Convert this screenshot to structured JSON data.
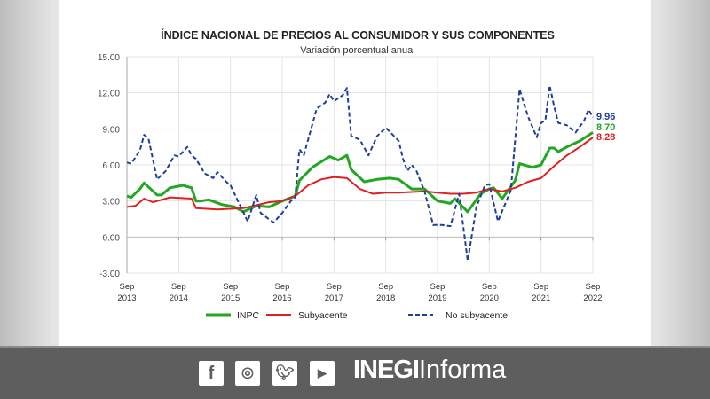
{
  "chart_data": {
    "type": "line",
    "title": "ÍNDICE NACIONAL DE PRECIOS AL CONSUMIDOR Y SUS COMPONENTES",
    "subtitle": "Variación porcentual anual",
    "ylim": [
      -3,
      15
    ],
    "yticks": [
      "15.00",
      "12.00",
      "9.00",
      "6.00",
      "3.00",
      "0.00",
      "-3.00"
    ],
    "xticks": [
      [
        "Sep",
        "2013"
      ],
      [
        "Sep",
        "2014"
      ],
      [
        "Sep",
        "2015"
      ],
      [
        "Sep",
        "2016"
      ],
      [
        "Sep",
        "2017"
      ],
      [
        "Sep",
        "2018"
      ],
      [
        "Sep",
        "2019"
      ],
      [
        "Sep",
        "2020"
      ],
      [
        "Sep",
        "2021"
      ],
      [
        "Sep",
        "2022"
      ]
    ],
    "grid": true,
    "legend": "bottom",
    "series": [
      {
        "name": "INPC",
        "color": "#22a722",
        "style": "solid",
        "end_label": "8.70",
        "points": [
          [
            "2013-09",
            3.4
          ],
          [
            "2013-10",
            3.3
          ],
          [
            "2013-12",
            4.0
          ],
          [
            "2014-01",
            4.5
          ],
          [
            "2014-04",
            3.5
          ],
          [
            "2014-05",
            3.5
          ],
          [
            "2014-07",
            4.1
          ],
          [
            "2014-10",
            4.3
          ],
          [
            "2014-12",
            4.1
          ],
          [
            "2015-01",
            3.0
          ],
          [
            "2015-02",
            3.0
          ],
          [
            "2015-04",
            3.1
          ],
          [
            "2015-07",
            2.7
          ],
          [
            "2015-10",
            2.5
          ],
          [
            "2015-12",
            2.1
          ],
          [
            "2016-03",
            2.6
          ],
          [
            "2016-06",
            2.5
          ],
          [
            "2016-09",
            3.0
          ],
          [
            "2016-12",
            3.4
          ],
          [
            "2017-01",
            4.7
          ],
          [
            "2017-04",
            5.8
          ],
          [
            "2017-08",
            6.7
          ],
          [
            "2017-10",
            6.4
          ],
          [
            "2017-12",
            6.8
          ],
          [
            "2018-01",
            5.6
          ],
          [
            "2018-04",
            4.6
          ],
          [
            "2018-07",
            4.8
          ],
          [
            "2018-10",
            4.9
          ],
          [
            "2018-12",
            4.8
          ],
          [
            "2019-03",
            4.0
          ],
          [
            "2019-06",
            4.0
          ],
          [
            "2019-09",
            3.0
          ],
          [
            "2019-12",
            2.8
          ],
          [
            "2020-01",
            3.2
          ],
          [
            "2020-04",
            2.1
          ],
          [
            "2020-07",
            3.6
          ],
          [
            "2020-09",
            4.0
          ],
          [
            "2020-10",
            4.1
          ],
          [
            "2020-12",
            3.2
          ],
          [
            "2021-03",
            4.7
          ],
          [
            "2021-04",
            6.1
          ],
          [
            "2021-07",
            5.8
          ],
          [
            "2021-09",
            6.0
          ],
          [
            "2021-11",
            7.4
          ],
          [
            "2021-12",
            7.4
          ],
          [
            "2022-01",
            7.1
          ],
          [
            "2022-03",
            7.5
          ],
          [
            "2022-06",
            8.0
          ],
          [
            "2022-09",
            8.7
          ]
        ]
      },
      {
        "name": "Subyacente",
        "color": "#e02020",
        "style": "solid",
        "end_label": "8.28",
        "points": [
          [
            "2013-09",
            2.5
          ],
          [
            "2013-11",
            2.6
          ],
          [
            "2014-01",
            3.2
          ],
          [
            "2014-03",
            2.9
          ],
          [
            "2014-05",
            3.1
          ],
          [
            "2014-07",
            3.3
          ],
          [
            "2014-12",
            3.2
          ],
          [
            "2015-01",
            2.4
          ],
          [
            "2015-06",
            2.3
          ],
          [
            "2015-12",
            2.4
          ],
          [
            "2016-06",
            2.9
          ],
          [
            "2016-09",
            3.0
          ],
          [
            "2016-12",
            3.4
          ],
          [
            "2017-03",
            4.3
          ],
          [
            "2017-06",
            4.8
          ],
          [
            "2017-09",
            5.0
          ],
          [
            "2017-12",
            4.9
          ],
          [
            "2018-03",
            4.0
          ],
          [
            "2018-06",
            3.6
          ],
          [
            "2018-09",
            3.7
          ],
          [
            "2018-12",
            3.7
          ],
          [
            "2019-06",
            3.8
          ],
          [
            "2019-09",
            3.7
          ],
          [
            "2019-12",
            3.6
          ],
          [
            "2020-03",
            3.6
          ],
          [
            "2020-06",
            3.7
          ],
          [
            "2020-09",
            4.0
          ],
          [
            "2020-12",
            3.8
          ],
          [
            "2021-03",
            4.1
          ],
          [
            "2021-06",
            4.6
          ],
          [
            "2021-09",
            4.9
          ],
          [
            "2021-12",
            5.9
          ],
          [
            "2022-03",
            6.8
          ],
          [
            "2022-06",
            7.5
          ],
          [
            "2022-09",
            8.28
          ]
        ]
      },
      {
        "name": "No subyacente",
        "color": "#1f3f99",
        "style": "dashed",
        "end_label": "9.96",
        "points": [
          [
            "2013-09",
            6.2
          ],
          [
            "2013-10",
            6.1
          ],
          [
            "2013-12",
            7.2
          ],
          [
            "2014-01",
            8.5
          ],
          [
            "2014-02",
            8.2
          ],
          [
            "2014-04",
            4.8
          ],
          [
            "2014-06",
            5.5
          ],
          [
            "2014-08",
            6.8
          ],
          [
            "2014-09",
            6.7
          ],
          [
            "2014-11",
            7.5
          ],
          [
            "2014-12",
            6.8
          ],
          [
            "2015-01",
            6.5
          ],
          [
            "2015-03",
            5.3
          ],
          [
            "2015-05",
            4.9
          ],
          [
            "2015-06",
            5.4
          ],
          [
            "2015-08",
            4.6
          ],
          [
            "2015-09",
            4.3
          ],
          [
            "2015-11",
            2.8
          ],
          [
            "2016-01",
            1.3
          ],
          [
            "2016-03",
            3.5
          ],
          [
            "2016-04",
            2.0
          ],
          [
            "2016-07",
            1.2
          ],
          [
            "2016-09",
            2.0
          ],
          [
            "2016-11",
            3.0
          ],
          [
            "2016-12",
            3.3
          ],
          [
            "2017-01",
            7.3
          ],
          [
            "2017-02",
            6.8
          ],
          [
            "2017-05",
            10.7
          ],
          [
            "2017-07",
            11.2
          ],
          [
            "2017-08",
            11.9
          ],
          [
            "2017-09",
            11.3
          ],
          [
            "2017-11",
            11.8
          ],
          [
            "2017-12",
            12.4
          ],
          [
            "2018-01",
            8.4
          ],
          [
            "2018-03",
            8.1
          ],
          [
            "2018-05",
            6.8
          ],
          [
            "2018-07",
            8.4
          ],
          [
            "2018-09",
            9.1
          ],
          [
            "2018-12",
            8.0
          ],
          [
            "2019-01",
            6.5
          ],
          [
            "2019-02",
            5.5
          ],
          [
            "2019-03",
            6.0
          ],
          [
            "2019-04",
            5.6
          ],
          [
            "2019-06",
            3.8
          ],
          [
            "2019-08",
            1.0
          ],
          [
            "2019-10",
            1.0
          ],
          [
            "2019-12",
            0.9
          ],
          [
            "2020-02",
            3.6
          ],
          [
            "2020-04",
            -2.0
          ],
          [
            "2020-06",
            2.5
          ],
          [
            "2020-08",
            4.3
          ],
          [
            "2020-09",
            4.4
          ],
          [
            "2020-11",
            1.3
          ],
          [
            "2021-02",
            3.9
          ],
          [
            "2021-04",
            12.3
          ],
          [
            "2021-06",
            10.0
          ],
          [
            "2021-08",
            8.3
          ],
          [
            "2021-09",
            9.5
          ],
          [
            "2021-10",
            9.7
          ],
          [
            "2021-11",
            12.6
          ],
          [
            "2021-12",
            10.9
          ],
          [
            "2022-01",
            9.5
          ],
          [
            "2022-03",
            9.3
          ],
          [
            "2022-05",
            8.7
          ],
          [
            "2022-07",
            9.7
          ],
          [
            "2022-08",
            10.6
          ],
          [
            "2022-09",
            9.96
          ]
        ]
      }
    ]
  },
  "footer": {
    "social_icons": [
      "facebook-icon",
      "instagram-icon",
      "twitter-icon",
      "youtube-icon"
    ],
    "brand_bold": "INEGI",
    "brand_regular": "Informa"
  }
}
